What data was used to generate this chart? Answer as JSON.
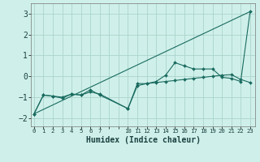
{
  "background_color": "#cff0ea",
  "grid_color": "#aad4cc",
  "line_color": "#1a6b60",
  "marker_color": "#1a6b60",
  "xlabel": "Humidex (Indice chaleur)",
  "xlabel_fontsize": 7.0,
  "ytick_fontsize": 7.0,
  "xtick_fontsize": 5.2,
  "yticks": [
    -2,
    -1,
    0,
    1,
    2,
    3
  ],
  "xtick_labels": [
    "0",
    "1",
    "2",
    "3",
    "4",
    "5",
    "6",
    "7",
    "",
    "",
    "10",
    "11",
    "12",
    "13",
    "14",
    "15",
    "16",
    "17",
    "18",
    "19",
    "20",
    "21",
    "22",
    "23"
  ],
  "xtick_positions": [
    0,
    1,
    2,
    3,
    4,
    5,
    6,
    7,
    8,
    9,
    10,
    11,
    12,
    13,
    14,
    15,
    16,
    17,
    18,
    19,
    20,
    21,
    22,
    23
  ],
  "ylim": [
    -2.4,
    3.5
  ],
  "xlim": [
    -0.3,
    23.5
  ],
  "series1_x": [
    0,
    1,
    2,
    3,
    4,
    5,
    6,
    7,
    10,
    11,
    12,
    13,
    14,
    15,
    16,
    17,
    18,
    19,
    20,
    21,
    22,
    23
  ],
  "series1_y": [
    -1.8,
    -0.9,
    -0.95,
    -1.0,
    -0.85,
    -0.9,
    -0.75,
    -0.85,
    -1.55,
    -0.45,
    -0.35,
    -0.3,
    -0.25,
    -0.2,
    -0.15,
    -0.1,
    -0.05,
    0.0,
    0.05,
    0.08,
    -0.15,
    -0.3
  ],
  "series2_x": [
    0,
    1,
    2,
    3,
    4,
    5,
    6,
    7,
    10,
    11,
    12,
    13,
    14,
    15,
    16,
    17,
    18,
    19,
    20,
    21,
    22,
    23
  ],
  "series2_y": [
    -1.8,
    -0.9,
    -0.95,
    -1.05,
    -0.85,
    -0.9,
    -0.65,
    -0.9,
    -1.55,
    -0.35,
    -0.35,
    -0.25,
    0.05,
    0.65,
    0.5,
    0.35,
    0.35,
    0.35,
    -0.05,
    -0.1,
    -0.25,
    3.1
  ],
  "series3_x": [
    0,
    23
  ],
  "series3_y": [
    -1.8,
    3.1
  ]
}
